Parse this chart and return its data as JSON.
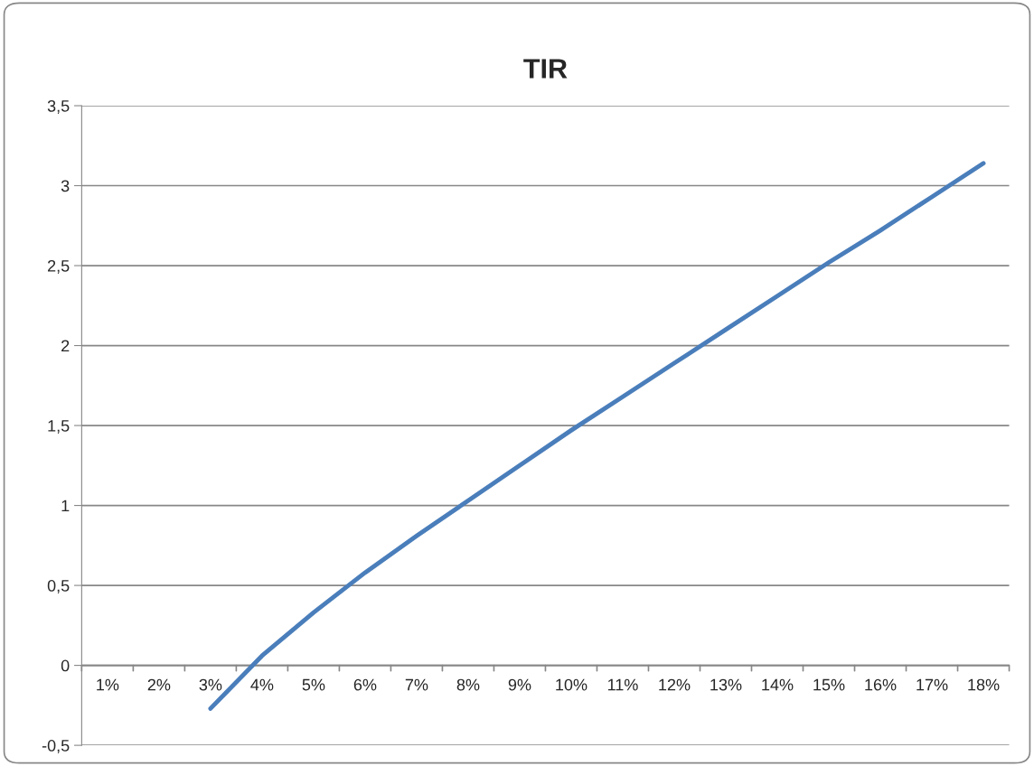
{
  "chart_data": {
    "type": "line",
    "title": "TIR",
    "categories": [
      "1%",
      "2%",
      "3%",
      "4%",
      "5%",
      "6%",
      "7%",
      "8%",
      "9%",
      "10%",
      "11%",
      "12%",
      "13%",
      "14%",
      "15%",
      "16%",
      "17%",
      "18%"
    ],
    "series": [
      {
        "color": "#4a7ebb",
        "values": [
          null,
          null,
          -0.27,
          0.06,
          0.33,
          0.58,
          0.81,
          1.03,
          1.25,
          1.47,
          1.68,
          1.89,
          2.1,
          2.31,
          2.52,
          2.72,
          2.93,
          3.14
        ]
      }
    ],
    "ylim": [
      -0.5,
      3.5
    ],
    "yticks": [
      {
        "value": -0.5,
        "label": "-0,5"
      },
      0,
      {
        "value": 0.5,
        "label": "0,5"
      },
      1,
      {
        "value": 1.5,
        "label": "1,5"
      },
      2,
      {
        "value": 2.5,
        "label": "2,5"
      },
      3,
      {
        "value": 3.5,
        "label": "3,5"
      }
    ],
    "grid": "y",
    "legend": false,
    "marker": "none",
    "line_style": "solid"
  }
}
